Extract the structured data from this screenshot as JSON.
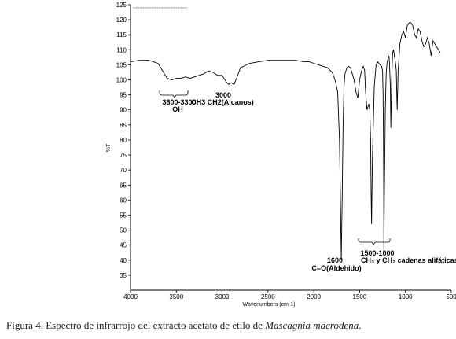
{
  "chart_data": {
    "type": "line",
    "xlabel": "Wavenumbers (cm-1)",
    "ylabel": "%T",
    "xlim": [
      4000,
      500
    ],
    "ylim": [
      30,
      125
    ],
    "x_ticks": [
      4000,
      3500,
      3000,
      2500,
      2000,
      1500,
      1000,
      500
    ],
    "y_ticks": [
      35,
      40,
      45,
      50,
      55,
      60,
      65,
      70,
      75,
      80,
      85,
      90,
      95,
      100,
      105,
      110,
      115,
      120,
      125
    ],
    "grid": false,
    "series": [
      {
        "x": [
          4000,
          3900,
          3800,
          3750,
          3700,
          3650,
          3600,
          3550,
          3500,
          3450,
          3400,
          3350,
          3300,
          3250,
          3200,
          3150,
          3100,
          3050,
          3000,
          2960,
          2930,
          2900,
          2870,
          2850,
          2800,
          2700,
          2600,
          2500,
          2400,
          2300,
          2200,
          2100,
          2050,
          2000,
          1950,
          1900,
          1850,
          1800,
          1780,
          1760,
          1740,
          1720,
          1710,
          1700,
          1690,
          1680,
          1670,
          1660,
          1640,
          1620,
          1600,
          1580,
          1560,
          1540,
          1520,
          1500,
          1480,
          1460,
          1445,
          1435,
          1420,
          1400,
          1390,
          1380,
          1375,
          1370,
          1360,
          1340,
          1320,
          1300,
          1280,
          1260,
          1250,
          1245,
          1240,
          1238,
          1235,
          1230,
          1220,
          1210,
          1200,
          1190,
          1180,
          1175,
          1165,
          1160,
          1150,
          1140,
          1130,
          1120,
          1110,
          1100,
          1095,
          1090,
          1080,
          1060,
          1040,
          1020,
          1000,
          980,
          960,
          940,
          920,
          900,
          880,
          860,
          840,
          820,
          800,
          780,
          760,
          740,
          720,
          700,
          680,
          660,
          640,
          620
        ],
        "y": [
          106,
          106.5,
          106.5,
          106,
          105.5,
          103,
          100.5,
          100,
          100.5,
          100.5,
          101,
          100.5,
          101,
          101.5,
          102,
          103,
          102.5,
          101.5,
          101.5,
          99.5,
          98.5,
          99,
          98.5,
          100,
          104,
          105.5,
          106,
          106.5,
          106.5,
          106.5,
          106.5,
          106,
          106,
          105.5,
          105,
          104.5,
          104,
          102.5,
          101,
          99,
          96,
          80,
          62,
          40,
          62,
          85,
          98,
          102,
          104,
          104.5,
          104,
          102,
          100,
          96,
          94,
          100,
          103,
          104.5,
          103,
          96,
          90,
          92,
          90,
          80,
          63,
          52,
          74,
          98,
          105,
          106,
          105,
          104.5,
          103,
          96,
          82,
          66,
          42,
          62,
          90,
          102,
          106,
          107,
          108,
          106,
          98,
          84,
          100,
          109,
          110,
          108,
          106,
          103,
          96,
          90,
          103,
          112,
          115,
          116,
          114,
          118,
          119,
          119,
          118,
          115,
          114,
          117,
          116,
          113,
          111,
          112,
          114,
          112,
          108,
          113,
          112,
          111,
          110,
          109
        ]
      }
    ],
    "dashed_line": {
      "x": [
        3970,
        3380
      ],
      "y": 124
    },
    "annotations": [
      {
        "label": "3600-3300",
        "sub": "OH"
      },
      {
        "label": "3000",
        "sub": "CH3 CH2(Alcanos)"
      },
      {
        "label": "1600",
        "sub": "C=O(Aldehido)"
      },
      {
        "label": "1500-1000",
        "sub": "CH₃ y CH₂  cadenas alifáticas"
      }
    ]
  },
  "caption": {
    "prefix": "Figura 4. Espectro de infrarrojo del extracto acetato de etilo de ",
    "italic": "Mascagnia macrodena",
    "suffix": "."
  }
}
